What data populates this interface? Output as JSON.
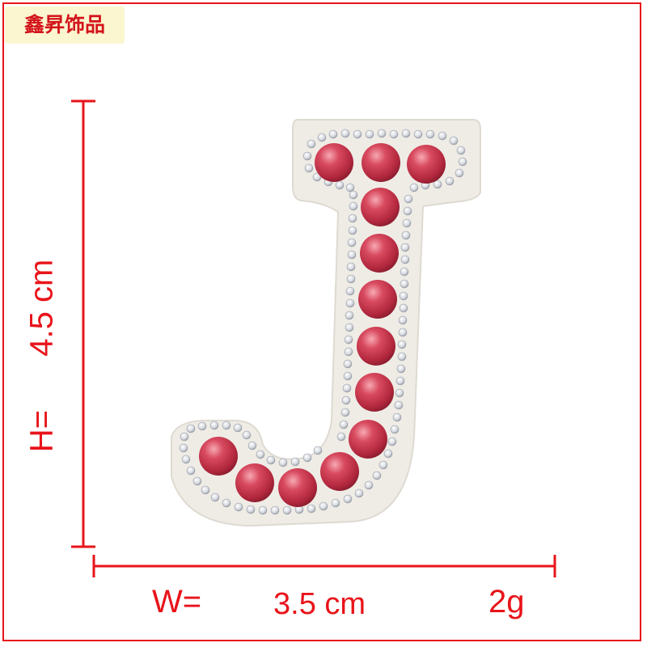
{
  "brand": {
    "text": "鑫昇饰品",
    "text_color": "#d3141b",
    "background": "#fbf6d0"
  },
  "dimensions": {
    "height_label": "H=",
    "height_value": "4.5 cm",
    "width_label": "W=",
    "width_value": "3.5 cm",
    "weight": "2g",
    "accent_color": "#e8141a"
  },
  "product": {
    "letter": "J",
    "felt_color": "#efece6",
    "pearl_color": "#cc3d52",
    "rhinestone_color": "#e6e8ee"
  }
}
